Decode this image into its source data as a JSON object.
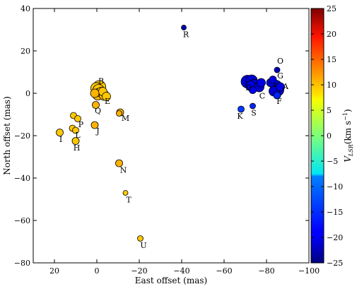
{
  "chart_data": {
    "type": "scatter",
    "xlabel": "East offset (mas)",
    "ylabel": "North offset (mas)",
    "xlim": [
      30,
      -100
    ],
    "ylim": [
      -80,
      40
    ],
    "xticks": [
      20,
      0,
      -20,
      -40,
      -60,
      -80,
      -100
    ],
    "xtick_labels": [
      "20",
      "0",
      "−20",
      "−40",
      "−60",
      "−80",
      "−100"
    ],
    "yticks": [
      40,
      20,
      0,
      -20,
      -40,
      -60,
      -80
    ],
    "ytick_labels": [
      "40",
      "20",
      "0",
      "−20",
      "−40",
      "−60",
      "−80"
    ],
    "grid": false,
    "colorbar": {
      "label_main": "V",
      "label_sub": "LSR",
      "label_units": "(km s",
      "label_exp": "−1",
      "label_close": ")",
      "min": -25,
      "max": 25,
      "ticks": [
        25,
        20,
        15,
        10,
        5,
        0,
        -5,
        -10,
        -15,
        -20,
        -25
      ],
      "tick_labels": [
        "25",
        "20",
        "15",
        "10",
        "5",
        "0",
        "−5",
        "−10",
        "−15",
        "−20",
        "−25"
      ],
      "colormap": "jet"
    },
    "points": [
      {
        "x": -1.2,
        "y": 3.0,
        "v": 9,
        "size": 9
      },
      {
        "x": 0.2,
        "y": 2.4,
        "v": 9,
        "size": 8
      },
      {
        "x": -0.8,
        "y": 1.5,
        "v": 9,
        "size": 8
      },
      {
        "x": -2.0,
        "y": 0.5,
        "v": 9,
        "size": 7
      },
      {
        "x": -0.5,
        "y": -0.5,
        "v": 10,
        "size": 8
      },
      {
        "x": -3.5,
        "y": -1.0,
        "v": 9,
        "size": 7
      },
      {
        "x": -2.8,
        "y": 0.8,
        "v": 9,
        "size": 6
      },
      {
        "x": -4.5,
        "y": -1.5,
        "v": 9,
        "size": 6
      },
      {
        "x": 1.0,
        "y": 0.0,
        "v": 10,
        "size": 6
      },
      {
        "x": 0.5,
        "y": -5.5,
        "v": 10,
        "size": 5
      },
      {
        "x": 11.0,
        "y": -10.5,
        "v": 9,
        "size": 4.5
      },
      {
        "x": 9.0,
        "y": -12.0,
        "v": 9,
        "size": 4.5
      },
      {
        "x": -11.0,
        "y": -9.0,
        "v": 10,
        "size": 5
      },
      {
        "x": -10.5,
        "y": -9.5,
        "v": 10,
        "size": 4
      },
      {
        "x": 17.5,
        "y": -18.5,
        "v": 9,
        "size": 5
      },
      {
        "x": 11.5,
        "y": -16.5,
        "v": 9,
        "size": 4.5
      },
      {
        "x": 10.0,
        "y": -17.5,
        "v": 9,
        "size": 4.5
      },
      {
        "x": 10.0,
        "y": -22.5,
        "v": 9,
        "size": 5
      },
      {
        "x": 1.0,
        "y": -15.0,
        "v": 10,
        "size": 5
      },
      {
        "x": -10.5,
        "y": -33.0,
        "v": 10,
        "size": 5
      },
      {
        "x": -13.5,
        "y": -47.0,
        "v": 9,
        "size": 3.5
      },
      {
        "x": -20.5,
        "y": -68.5,
        "v": 9,
        "size": 4
      },
      {
        "x": -41.0,
        "y": 31.0,
        "v": -23,
        "size": 3.5
      },
      {
        "x": -71.0,
        "y": 5.5,
        "v": -21,
        "size": 9
      },
      {
        "x": -73.0,
        "y": 6.0,
        "v": -21,
        "size": 8
      },
      {
        "x": -74.5,
        "y": 4.0,
        "v": -21,
        "size": 8
      },
      {
        "x": -72.5,
        "y": 3.5,
        "v": -20,
        "size": 7
      },
      {
        "x": -76.5,
        "y": 3.0,
        "v": -21,
        "size": 7
      },
      {
        "x": -77.5,
        "y": 5.0,
        "v": -20,
        "size": 6
      },
      {
        "x": -73.5,
        "y": 1.5,
        "v": -19,
        "size": 5
      },
      {
        "x": -82.0,
        "y": 5.0,
        "v": -21,
        "size": 6
      },
      {
        "x": -83.0,
        "y": 6.5,
        "v": -20,
        "size": 5
      },
      {
        "x": -84.5,
        "y": 3.5,
        "v": -21,
        "size": 8
      },
      {
        "x": -85.5,
        "y": 1.5,
        "v": -21,
        "size": 8
      },
      {
        "x": -83.5,
        "y": 1.0,
        "v": -21,
        "size": 7
      },
      {
        "x": -86.5,
        "y": 3.0,
        "v": -20,
        "size": 6
      },
      {
        "x": -85.0,
        "y": -1.0,
        "v": -17,
        "size": 5
      },
      {
        "x": -85.0,
        "y": 11.0,
        "v": -22,
        "size": 4
      },
      {
        "x": -68.0,
        "y": -7.5,
        "v": -16,
        "size": 4.5
      },
      {
        "x": -73.5,
        "y": -6.0,
        "v": -17,
        "size": 4
      }
    ],
    "annotations": [
      {
        "text": "A",
        "x": -89,
        "y": 2
      },
      {
        "text": "B",
        "x": -2,
        "y": 4.5
      },
      {
        "text": "C",
        "x": -78,
        "y": -2.5
      },
      {
        "text": "D",
        "x": -71.5,
        "y": 1.5
      },
      {
        "text": "E",
        "x": -5,
        "y": -5
      },
      {
        "text": "F",
        "x": -86,
        "y": -5
      },
      {
        "text": "G",
        "x": -86.5,
        "y": 7
      },
      {
        "text": "H",
        "x": 9.5,
        "y": -27
      },
      {
        "text": "I",
        "x": 17,
        "y": -23
      },
      {
        "text": "J",
        "x": -0.5,
        "y": -19
      },
      {
        "text": "K",
        "x": -67.5,
        "y": -12
      },
      {
        "text": "L",
        "x": 9,
        "y": -21
      },
      {
        "text": "M",
        "x": -13.5,
        "y": -13
      },
      {
        "text": "N",
        "x": -12.5,
        "y": -37.5
      },
      {
        "text": "O",
        "x": -86.5,
        "y": 14
      },
      {
        "text": "P",
        "x": 7.5,
        "y": -16
      },
      {
        "text": "Q",
        "x": -0.5,
        "y": -9.5
      },
      {
        "text": "R",
        "x": -42,
        "y": 26.5
      },
      {
        "text": "S",
        "x": -74,
        "y": -10.5
      },
      {
        "text": "T",
        "x": -15,
        "y": -51.5
      },
      {
        "text": "U",
        "x": -22,
        "y": -73
      }
    ]
  }
}
